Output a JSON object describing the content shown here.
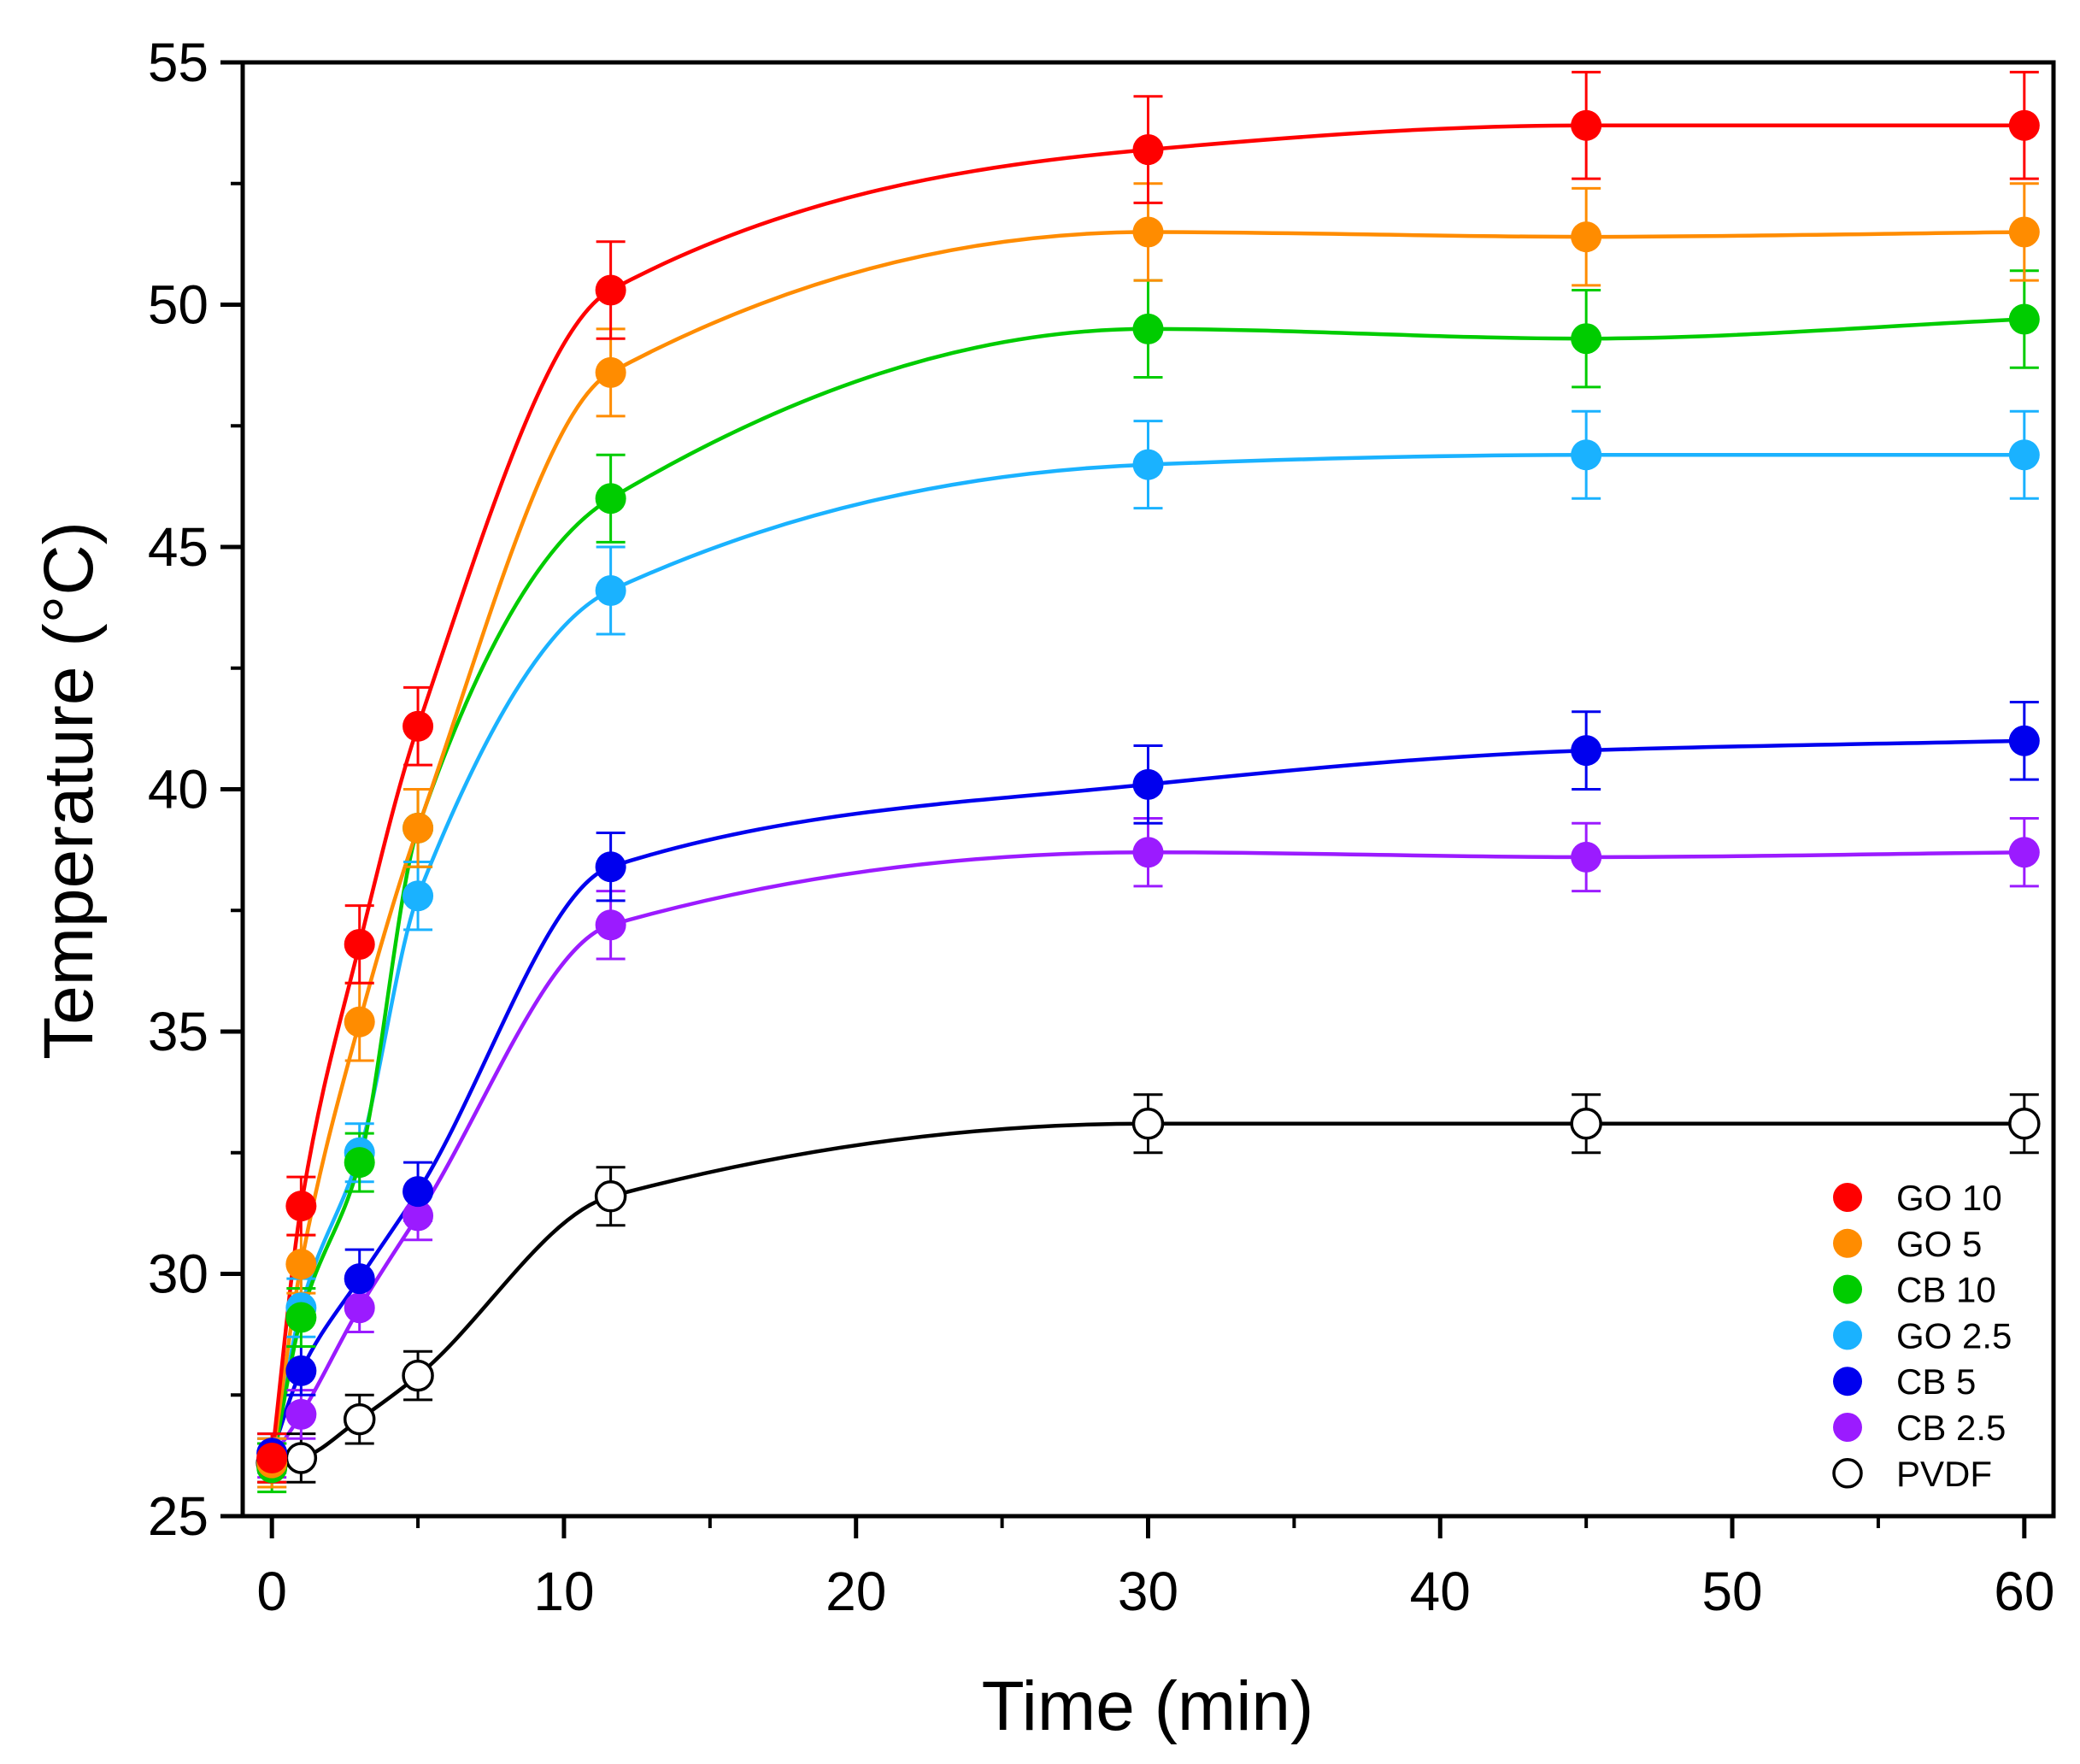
{
  "chart_data": {
    "type": "line",
    "title": "",
    "xlabel": "Time (min)",
    "ylabel": "Temperature (°C)",
    "xlim": [
      -1,
      61
    ],
    "ylim": [
      25,
      55
    ],
    "xticks": [
      0,
      10,
      20,
      30,
      40,
      50,
      60
    ],
    "yticks": [
      25,
      30,
      35,
      40,
      45,
      50,
      55
    ],
    "grid": false,
    "legend_position": "bottom-right",
    "x": [
      0,
      1,
      3,
      5,
      11.6,
      30,
      45,
      60
    ],
    "series": [
      {
        "name": "GO 10",
        "color": "#ff0000",
        "marker": "filled",
        "values": [
          26.2,
          31.4,
          36.8,
          41.3,
          50.3,
          53.2,
          53.7,
          53.7
        ],
        "errors": [
          0.5,
          0.6,
          0.8,
          0.8,
          1.0,
          1.1,
          1.1,
          1.1
        ]
      },
      {
        "name": "GO 5",
        "color": "#ff8c00",
        "marker": "filled",
        "values": [
          26.1,
          30.2,
          35.2,
          39.2,
          48.6,
          51.5,
          51.4,
          51.5
        ],
        "errors": [
          0.5,
          0.6,
          0.8,
          0.8,
          0.9,
          1.0,
          1.0,
          1.0
        ]
      },
      {
        "name": "CB 10",
        "color": "#00cc00",
        "marker": "filled",
        "values": [
          26.0,
          29.1,
          32.3,
          39.2,
          46.0,
          49.5,
          49.3,
          49.7
        ],
        "errors": [
          0.5,
          0.6,
          0.6,
          0.8,
          0.9,
          1.0,
          1.0,
          1.0
        ]
      },
      {
        "name": "GO 2.5",
        "color": "#1ab2ff",
        "marker": "filled",
        "values": [
          26.1,
          29.3,
          32.5,
          37.8,
          44.1,
          46.7,
          46.9,
          46.9
        ],
        "errors": [
          0.5,
          0.6,
          0.6,
          0.7,
          0.9,
          0.9,
          0.9,
          0.9
        ]
      },
      {
        "name": "CB 5",
        "color": "#0000ee",
        "marker": "filled",
        "values": [
          26.3,
          28.0,
          29.9,
          31.7,
          38.4,
          40.1,
          40.8,
          41.0
        ],
        "errors": [
          0.4,
          0.5,
          0.6,
          0.6,
          0.7,
          0.8,
          0.8,
          0.8
        ]
      },
      {
        "name": "CB 2.5",
        "color": "#9b1bff",
        "marker": "filled",
        "values": [
          26.2,
          27.1,
          29.3,
          31.2,
          37.2,
          38.7,
          38.6,
          38.7
        ],
        "errors": [
          0.4,
          0.5,
          0.5,
          0.5,
          0.7,
          0.7,
          0.7,
          0.7
        ]
      },
      {
        "name": "PVDF",
        "color": "#000000",
        "marker": "open",
        "values": [
          26.1,
          26.2,
          27.0,
          27.9,
          31.6,
          33.1,
          33.1,
          33.1
        ],
        "errors": [
          0.4,
          0.5,
          0.5,
          0.5,
          0.6,
          0.6,
          0.6,
          0.6
        ]
      }
    ]
  }
}
